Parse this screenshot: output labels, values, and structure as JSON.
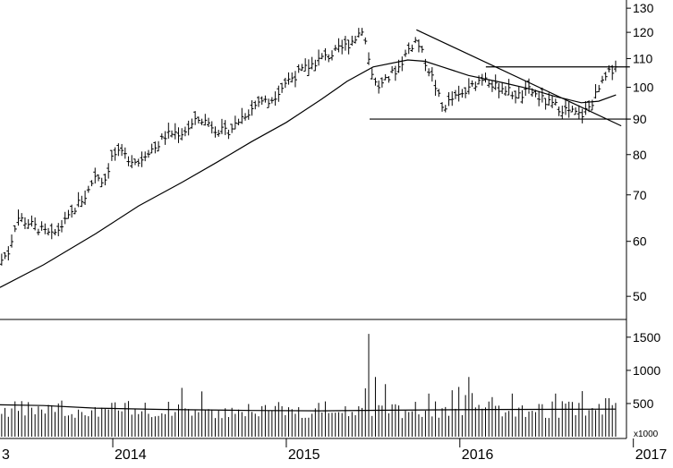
{
  "chart_data": {
    "type": "bar",
    "subtype": "ohlc-weekly-price-with-volume",
    "price_axis": {
      "scale": "log",
      "ylim": [
        47,
        132
      ],
      "ticks": [
        50,
        60,
        70,
        80,
        90,
        100,
        110,
        120,
        130
      ],
      "tick_labels": [
        "50",
        "60",
        "70",
        "80",
        "90",
        "100",
        "110",
        "120",
        "130"
      ]
    },
    "volume_axis": {
      "ylim": [
        0,
        1700
      ],
      "ticks": [
        500,
        1000,
        1500
      ],
      "tick_labels": [
        "500",
        "1000",
        "1500"
      ],
      "unit_label": "x1000"
    },
    "x_axis": {
      "start": 2013.35,
      "end": 2016.95,
      "ticks": [
        2014,
        2015,
        2016,
        2017
      ],
      "tick_labels": [
        "2014",
        "2015",
        "2016",
        "2017"
      ],
      "left_partial_label": "3"
    },
    "price_close_points": [
      [
        2013.35,
        56
      ],
      [
        2013.4,
        58
      ],
      [
        2013.45,
        65
      ],
      [
        2013.5,
        64
      ],
      [
        2013.55,
        63
      ],
      [
        2013.6,
        62
      ],
      [
        2013.65,
        61
      ],
      [
        2013.7,
        63
      ],
      [
        2013.75,
        65
      ],
      [
        2013.8,
        68
      ],
      [
        2013.85,
        70
      ],
      [
        2013.9,
        75
      ],
      [
        2013.95,
        73
      ],
      [
        2014.0,
        80
      ],
      [
        2014.05,
        80
      ],
      [
        2014.1,
        79
      ],
      [
        2014.15,
        78
      ],
      [
        2014.2,
        81
      ],
      [
        2014.25,
        82
      ],
      [
        2014.3,
        85
      ],
      [
        2014.35,
        86
      ],
      [
        2014.4,
        86
      ],
      [
        2014.45,
        88
      ],
      [
        2014.5,
        90
      ],
      [
        2014.55,
        89
      ],
      [
        2014.6,
        87
      ],
      [
        2014.65,
        86
      ],
      [
        2014.7,
        88
      ],
      [
        2014.75,
        91
      ],
      [
        2014.8,
        93
      ],
      [
        2014.85,
        96
      ],
      [
        2014.9,
        95
      ],
      [
        2015.0,
        102
      ],
      [
        2015.05,
        104
      ],
      [
        2015.1,
        106
      ],
      [
        2015.15,
        108
      ],
      [
        2015.2,
        110
      ],
      [
        2015.25,
        111
      ],
      [
        2015.3,
        113
      ],
      [
        2015.35,
        115
      ],
      [
        2015.4,
        118
      ],
      [
        2015.44,
        122
      ],
      [
        2015.48,
        108
      ],
      [
        2015.52,
        100
      ],
      [
        2015.56,
        101
      ],
      [
        2015.6,
        104
      ],
      [
        2015.65,
        107
      ],
      [
        2015.7,
        113
      ],
      [
        2015.75,
        117
      ],
      [
        2015.8,
        109
      ],
      [
        2015.85,
        102
      ],
      [
        2015.9,
        93
      ],
      [
        2015.95,
        96
      ],
      [
        2016.0,
        97
      ],
      [
        2016.05,
        99
      ],
      [
        2016.1,
        102
      ],
      [
        2016.15,
        104
      ],
      [
        2016.2,
        100
      ],
      [
        2016.25,
        100
      ],
      [
        2016.3,
        98
      ],
      [
        2016.35,
        97
      ],
      [
        2016.4,
        99
      ],
      [
        2016.45,
        97
      ],
      [
        2016.5,
        95
      ],
      [
        2016.55,
        94
      ],
      [
        2016.6,
        93
      ],
      [
        2016.65,
        92
      ],
      [
        2016.7,
        91
      ],
      [
        2016.75,
        94
      ],
      [
        2016.8,
        99
      ],
      [
        2016.85,
        104
      ],
      [
        2016.9,
        108
      ]
    ],
    "moving_average_points": [
      [
        2013.35,
        51.5
      ],
      [
        2013.6,
        55.5
      ],
      [
        2013.9,
        61.5
      ],
      [
        2014.15,
        67.5
      ],
      [
        2014.4,
        73
      ],
      [
        2014.6,
        78
      ],
      [
        2014.8,
        83.5
      ],
      [
        2015.0,
        89
      ],
      [
        2015.2,
        96
      ],
      [
        2015.35,
        102
      ],
      [
        2015.5,
        107
      ],
      [
        2015.7,
        109.5
      ],
      [
        2015.8,
        109
      ],
      [
        2015.9,
        107
      ],
      [
        2016.05,
        104
      ],
      [
        2016.25,
        101.5
      ],
      [
        2016.4,
        99.5
      ],
      [
        2016.55,
        97
      ],
      [
        2016.7,
        95
      ],
      [
        2016.8,
        95.5
      ],
      [
        2016.9,
        97.5
      ]
    ],
    "trendlines": [
      {
        "kind": "support",
        "from": [
          2015.48,
          90
        ],
        "to": [
          2016.98,
          90
        ]
      },
      {
        "kind": "resistance",
        "from": [
          2016.15,
          107
        ],
        "to": [
          2016.98,
          107
        ]
      },
      {
        "kind": "downtrend",
        "from": [
          2015.75,
          121
        ],
        "to": [
          2016.93,
          88
        ]
      }
    ],
    "volume_ma_points": [
      [
        2013.35,
        480
      ],
      [
        2013.6,
        470
      ],
      [
        2013.9,
        430
      ],
      [
        2014.3,
        410
      ],
      [
        2014.8,
        395
      ],
      [
        2015.2,
        390
      ],
      [
        2015.6,
        400
      ],
      [
        2016.2,
        410
      ],
      [
        2016.9,
        415
      ]
    ],
    "volume_spikes": [
      [
        2015.47,
        1550
      ],
      [
        2015.52,
        900
      ],
      [
        2015.82,
        650
      ],
      [
        2015.95,
        700
      ],
      [
        2016.0,
        750
      ],
      [
        2016.05,
        900
      ],
      [
        2016.3,
        650
      ],
      [
        2016.55,
        650
      ],
      [
        2016.85,
        580
      ]
    ],
    "grid": false,
    "legend": "none"
  }
}
